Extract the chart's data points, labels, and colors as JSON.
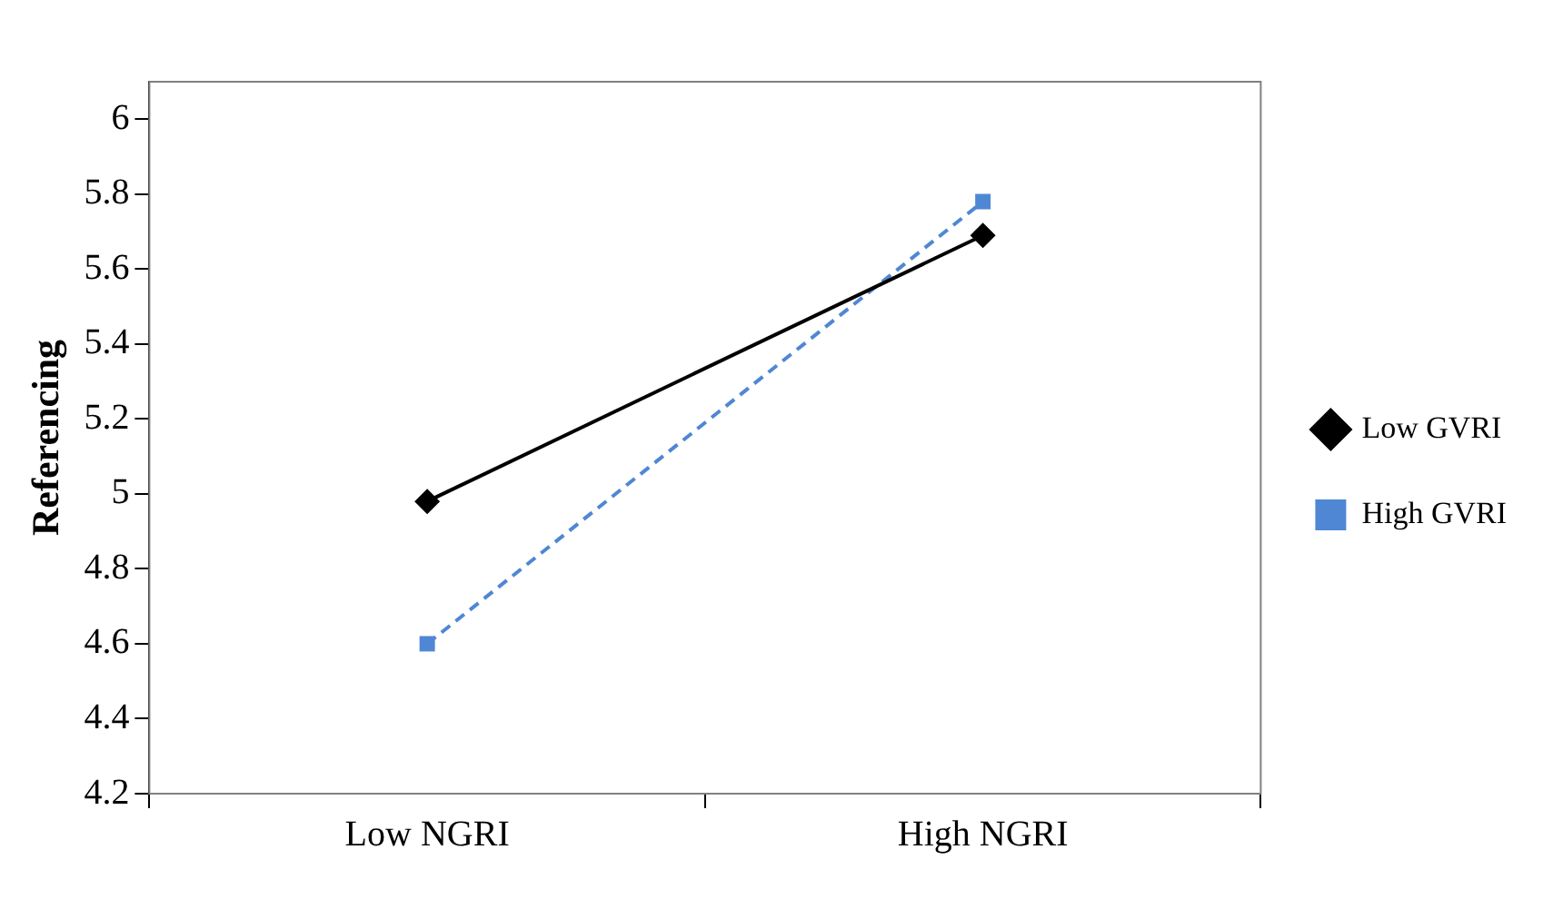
{
  "chart_data": {
    "type": "line",
    "ylabel": "Referencing",
    "categories": [
      "Low NGRI",
      "High NGRI"
    ],
    "series": [
      {
        "name": "Low GVRI",
        "color": "#000000",
        "values": [
          4.98,
          5.69
        ],
        "marker": "diamond",
        "line_style": "solid"
      },
      {
        "name": "High GVRI",
        "color": "#4f87d4",
        "values": [
          4.6,
          5.78
        ],
        "marker": "square",
        "line_style": "dashed"
      }
    ],
    "ylim": [
      4.2,
      6.1
    ],
    "yticks": [
      4.2,
      4.4,
      4.6,
      4.8,
      5,
      5.2,
      5.4,
      5.6,
      5.8,
      6
    ],
    "grid": false,
    "legend": "right"
  }
}
